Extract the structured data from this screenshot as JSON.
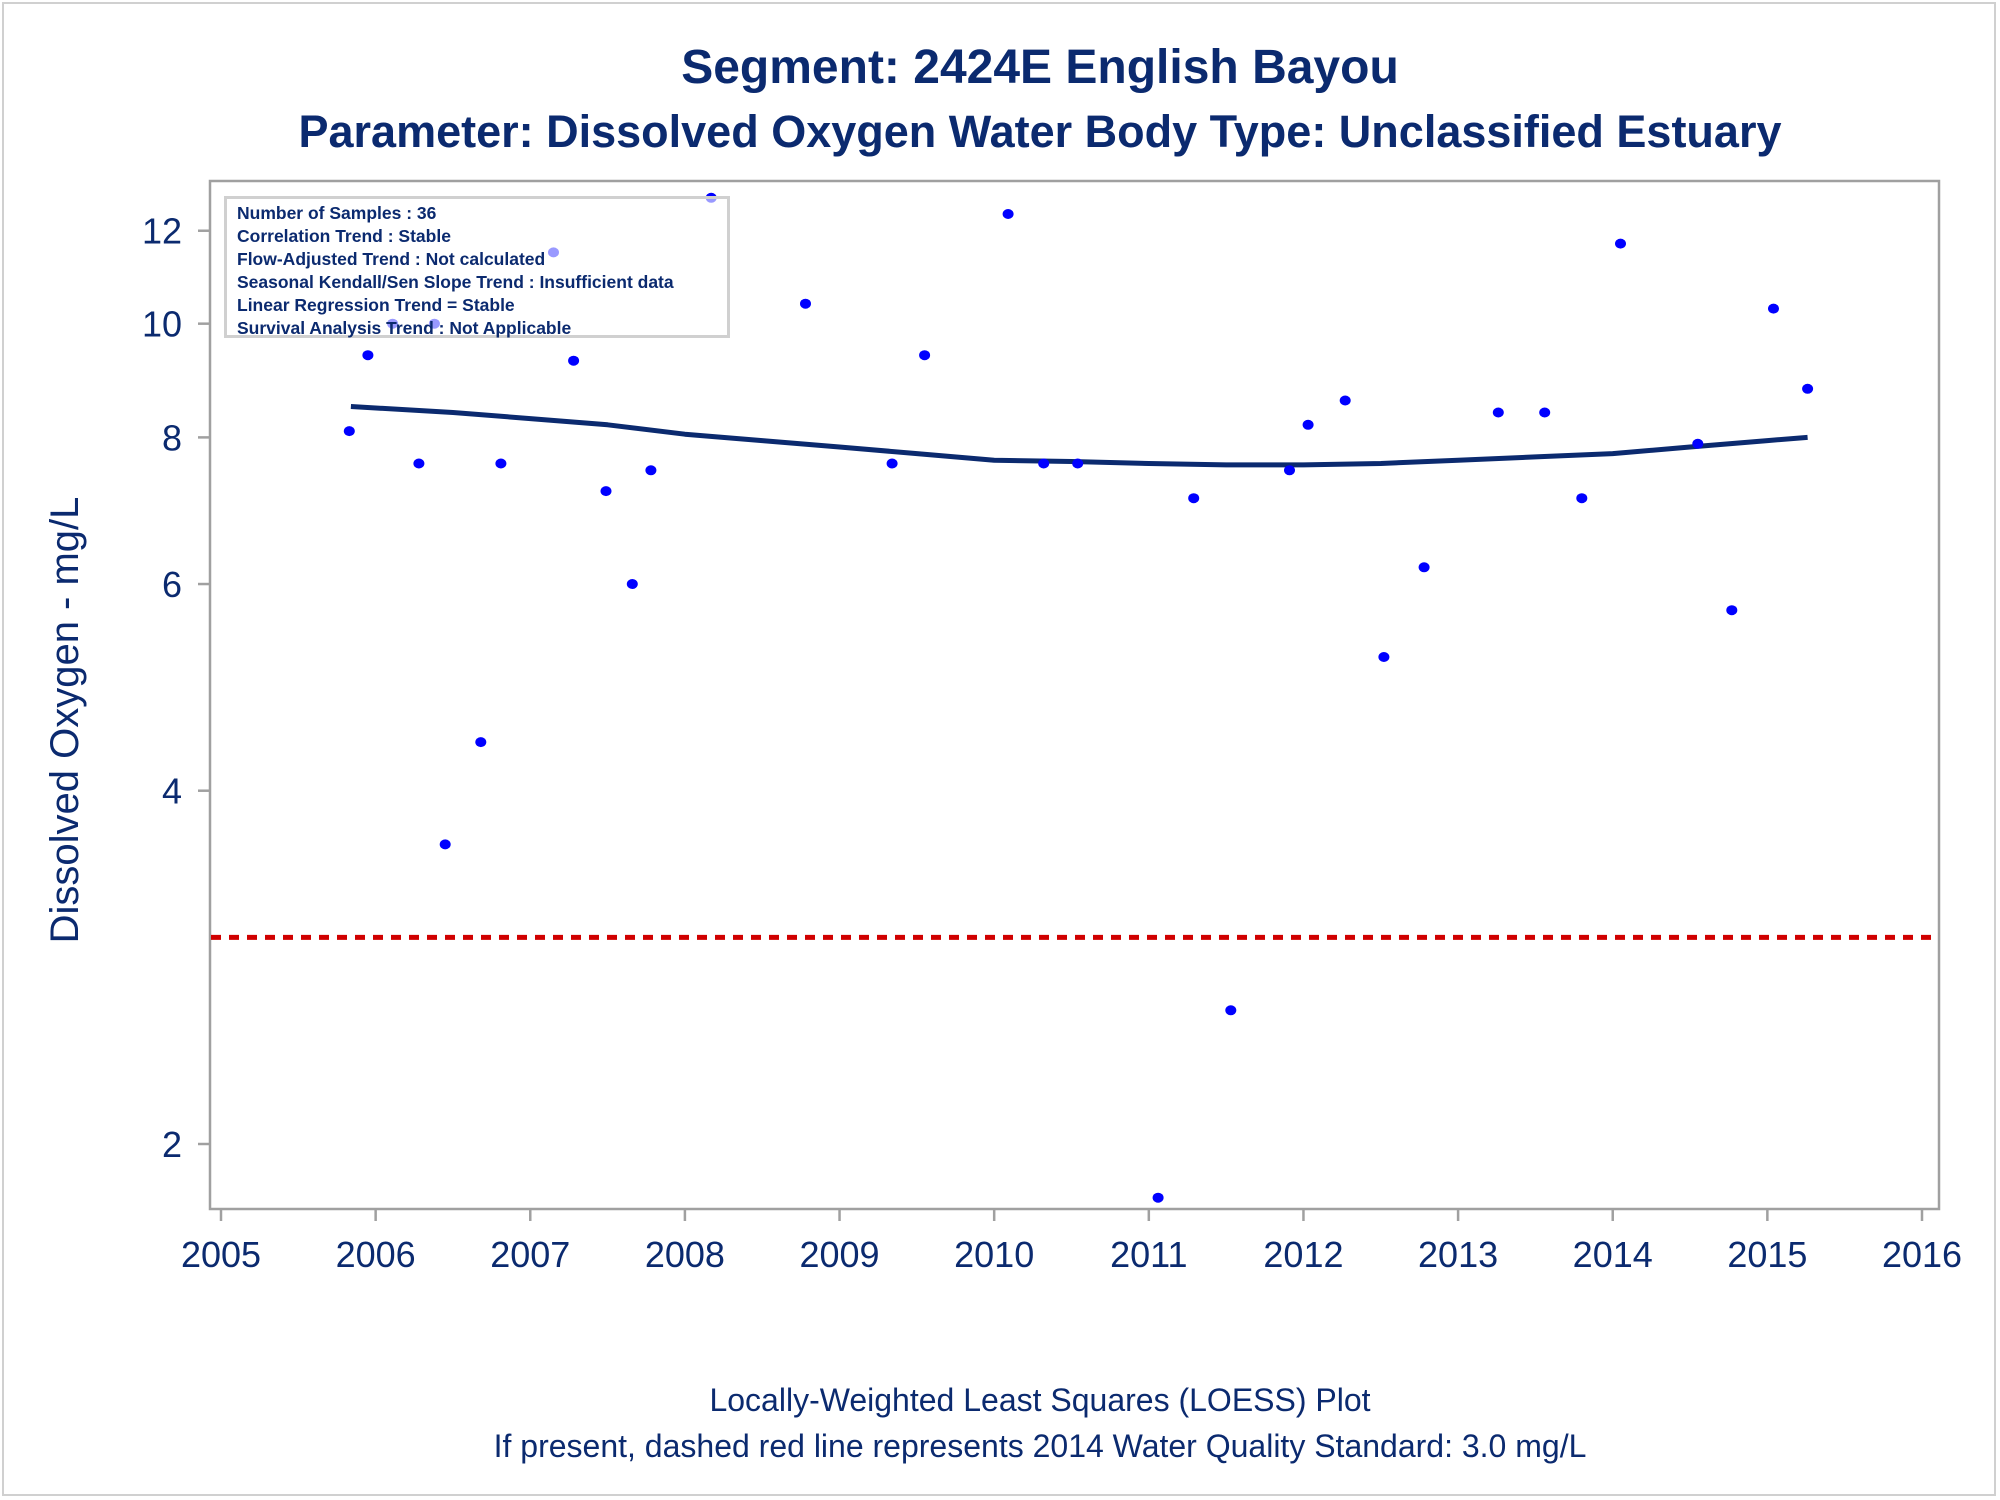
{
  "chart_data": {
    "type": "scatter",
    "title": "Segment: 2424E  English Bayou",
    "subtitle": "Parameter: Dissolved Oxygen   Water Body Type: Unclassified Estuary",
    "xlabel": "",
    "ylabel": "Dissolved Oxygen - mg/L",
    "y_scale": "log",
    "xlim": [
      2005,
      2016
    ],
    "ylim": [
      1.75,
      13.2
    ],
    "x_ticks": [
      2005,
      2006,
      2007,
      2008,
      2009,
      2010,
      2011,
      2012,
      2013,
      2014,
      2015,
      2016
    ],
    "y_ticks": [
      2,
      4,
      6,
      8,
      10,
      12
    ],
    "grid": false,
    "series": [
      {
        "name": "Samples",
        "type": "scatter",
        "color": "#0000ff",
        "points": [
          [
            2005.83,
            8.1
          ],
          [
            2005.95,
            9.4
          ],
          [
            2006.11,
            10.0
          ],
          [
            2006.28,
            7.6
          ],
          [
            2006.38,
            10.0
          ],
          [
            2006.45,
            3.6
          ],
          [
            2006.68,
            4.4
          ],
          [
            2006.81,
            7.6
          ],
          [
            2007.15,
            11.5
          ],
          [
            2007.28,
            9.3
          ],
          [
            2007.49,
            7.2
          ],
          [
            2007.66,
            6.0
          ],
          [
            2007.78,
            7.5
          ],
          [
            2008.17,
            12.8
          ],
          [
            2008.78,
            10.4
          ],
          [
            2009.34,
            7.6
          ],
          [
            2009.55,
            9.4
          ],
          [
            2010.09,
            12.4
          ],
          [
            2010.32,
            7.6
          ],
          [
            2010.54,
            7.6
          ],
          [
            2011.06,
            1.8
          ],
          [
            2011.29,
            7.1
          ],
          [
            2011.53,
            2.6
          ],
          [
            2011.91,
            7.5
          ],
          [
            2012.03,
            8.2
          ],
          [
            2012.27,
            8.6
          ],
          [
            2012.52,
            5.2
          ],
          [
            2012.78,
            6.2
          ],
          [
            2013.26,
            8.4
          ],
          [
            2013.56,
            8.4
          ],
          [
            2013.8,
            7.1
          ],
          [
            2014.05,
            11.7
          ],
          [
            2014.55,
            7.9
          ],
          [
            2014.77,
            5.7
          ],
          [
            2015.04,
            10.3
          ],
          [
            2015.26,
            8.8
          ]
        ]
      },
      {
        "name": "LOESS",
        "type": "line",
        "color": "#0b2a6f",
        "points": [
          [
            2005.84,
            8.5
          ],
          [
            2006.5,
            8.4
          ],
          [
            2007.0,
            8.3
          ],
          [
            2007.5,
            8.2
          ],
          [
            2008.0,
            8.05
          ],
          [
            2008.5,
            7.95
          ],
          [
            2009.0,
            7.85
          ],
          [
            2009.5,
            7.75
          ],
          [
            2010.0,
            7.65
          ],
          [
            2010.5,
            7.63
          ],
          [
            2011.0,
            7.6
          ],
          [
            2011.5,
            7.58
          ],
          [
            2012.0,
            7.58
          ],
          [
            2012.5,
            7.6
          ],
          [
            2013.0,
            7.65
          ],
          [
            2013.5,
            7.7
          ],
          [
            2014.0,
            7.75
          ],
          [
            2014.5,
            7.85
          ],
          [
            2015.0,
            7.95
          ],
          [
            2015.26,
            8.0
          ]
        ]
      },
      {
        "name": "2014 Water Quality Standard",
        "type": "hline",
        "color": "#d00000",
        "style": "dashed",
        "value": 3.0
      }
    ],
    "annotation_box": [
      "Number of Samples : 36",
      "Correlation Trend : Stable",
      "Flow-Adjusted Trend : Not calculated",
      "Seasonal Kendall/Sen Slope Trend : Insufficient data",
      "Linear Regression Trend = Stable",
      "Survival Analysis Trend : Not Applicable"
    ],
    "footnotes": [
      "Locally-Weighted Least Squares (LOESS) Plot",
      "If present, dashed red line represents 2014 Water Quality Standard: 3.0 mg/L"
    ]
  }
}
